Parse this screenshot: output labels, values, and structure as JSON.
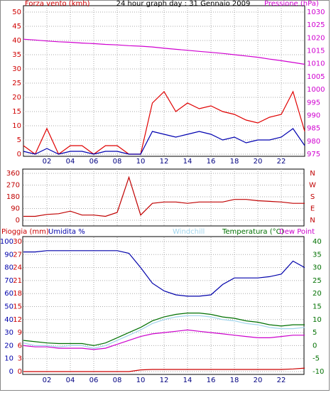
{
  "chart_data": [
    {
      "type": "line",
      "title": "24 hour graph day : 31 Gennaio 2009",
      "ylabel": "Forza vento (kmh)",
      "y2label": "Pressione (hPa)",
      "x": [
        0,
        1,
        2,
        3,
        4,
        5,
        6,
        7,
        8,
        9,
        10,
        11,
        12,
        13,
        14,
        15,
        16,
        17,
        18,
        19,
        20,
        21,
        22,
        23,
        24
      ],
      "xlim": [
        0,
        24
      ],
      "xticks": [
        {
          "value": 2,
          "label": "02"
        },
        {
          "value": 4,
          "label": "04"
        },
        {
          "value": 6,
          "label": "06"
        },
        {
          "value": 8,
          "label": "08"
        },
        {
          "value": 10,
          "label": "10"
        },
        {
          "value": 12,
          "label": "12"
        },
        {
          "value": 14,
          "label": "14"
        },
        {
          "value": 16,
          "label": "16"
        },
        {
          "value": 18,
          "label": "18"
        },
        {
          "value": 20,
          "label": "20"
        },
        {
          "value": 22,
          "label": "22"
        }
      ],
      "ylim": [
        0,
        50
      ],
      "yticks": [
        0,
        5,
        10,
        15,
        20,
        25,
        30,
        35,
        40,
        45,
        50
      ],
      "y2lim": [
        975,
        1030
      ],
      "y2ticks": [
        975,
        980,
        985,
        990,
        995,
        1000,
        1005,
        1010,
        1015,
        1020,
        1025,
        1030
      ],
      "grid": true,
      "series": [
        {
          "color": "#e00000",
          "values": [
            3,
            0,
            9,
            0,
            3,
            3,
            0,
            3,
            3,
            0,
            0,
            18,
            22,
            15,
            18,
            16,
            17,
            15,
            14,
            12,
            11,
            13,
            14,
            22,
            8
          ]
        },
        {
          "color": "#0000b0",
          "values": [
            1,
            0,
            2,
            0,
            1,
            1,
            0,
            1,
            1,
            0,
            0,
            8,
            7,
            6,
            7,
            8,
            7,
            5,
            6,
            4,
            5,
            5,
            6,
            9,
            3
          ]
        },
        {
          "color": "#d000d0",
          "axis": "y2",
          "values": [
            1019.5,
            1019.2,
            1018.8,
            1018.5,
            1018.3,
            1018,
            1017.8,
            1017.5,
            1017.3,
            1017,
            1016.8,
            1016.5,
            1016,
            1015.6,
            1015.2,
            1014.8,
            1014.4,
            1014,
            1013.5,
            1013,
            1012.5,
            1011.8,
            1011.2,
            1010.5,
            1009.8
          ]
        }
      ]
    },
    {
      "type": "line",
      "x": [
        0,
        1,
        2,
        3,
        4,
        5,
        6,
        7,
        8,
        9,
        10,
        11,
        12,
        13,
        14,
        15,
        16,
        17,
        18,
        19,
        20,
        21,
        22,
        23,
        24
      ],
      "xlim": [
        0,
        24
      ],
      "ylim": [
        0,
        360
      ],
      "yticks": [
        0,
        90,
        180,
        270,
        360
      ],
      "y2lim": [
        0,
        360
      ],
      "y2ticks": [
        {
          "value": 0,
          "label": "N"
        },
        {
          "value": 90,
          "label": "E"
        },
        {
          "value": 180,
          "label": "S"
        },
        {
          "value": 270,
          "label": "W"
        },
        {
          "value": 360,
          "label": "N"
        }
      ],
      "grid": true,
      "series": [
        {
          "color": "#c00000",
          "values": [
            30,
            30,
            45,
            50,
            70,
            40,
            40,
            30,
            60,
            330,
            40,
            130,
            140,
            140,
            130,
            140,
            140,
            140,
            160,
            160,
            150,
            145,
            140,
            130,
            130
          ]
        }
      ]
    },
    {
      "type": "line",
      "ylabel": "Umidita %",
      "y3label": "Pioggia (mm)",
      "x": [
        0,
        1,
        2,
        3,
        4,
        5,
        6,
        7,
        8,
        9,
        10,
        11,
        12,
        13,
        14,
        15,
        16,
        17,
        18,
        19,
        20,
        21,
        22,
        23,
        24
      ],
      "xlim": [
        0,
        24
      ],
      "xticks": [
        {
          "value": 2,
          "label": "02"
        },
        {
          "value": 4,
          "label": "04"
        },
        {
          "value": 6,
          "label": "06"
        },
        {
          "value": 8,
          "label": "08"
        },
        {
          "value": 10,
          "label": "10"
        },
        {
          "value": 12,
          "label": "12"
        },
        {
          "value": 14,
          "label": "14"
        },
        {
          "value": 16,
          "label": "16"
        },
        {
          "value": 18,
          "label": "18"
        },
        {
          "value": 20,
          "label": "20"
        },
        {
          "value": 22,
          "label": "22"
        }
      ],
      "ylim": [
        0,
        100
      ],
      "yticks": [
        0,
        10,
        20,
        30,
        40,
        50,
        60,
        70,
        80,
        90,
        100
      ],
      "y3lim": [
        0,
        30
      ],
      "y3ticks": [
        0,
        3,
        6,
        9,
        12,
        15,
        18,
        21,
        24,
        27,
        30
      ],
      "y2lim": [
        -10,
        40
      ],
      "y2ticks": [
        -10,
        -5,
        0,
        5,
        10,
        15,
        20,
        25,
        30,
        35,
        40
      ],
      "grid": true,
      "series": [
        {
          "color": "#0000aa",
          "values": [
            92,
            92,
            93,
            93,
            93,
            93,
            93,
            93,
            93,
            91,
            80,
            68,
            62,
            59,
            58,
            58,
            59,
            67,
            72,
            72,
            72,
            73,
            75,
            85,
            80
          ]
        },
        {
          "name": "Windchill",
          "color": "#a0d4ec",
          "axis": "y2",
          "values": [
            1,
            0,
            0,
            -0.5,
            0,
            0,
            -1,
            0,
            2,
            4,
            6,
            8.5,
            10,
            11,
            11.5,
            11.5,
            11,
            10,
            9.5,
            8.5,
            8,
            7,
            6.5,
            6.5,
            7
          ]
        },
        {
          "name": "Temperatura (°C)",
          "color": "#007000",
          "axis": "y2",
          "values": [
            2,
            1.5,
            1,
            0.8,
            0.8,
            0.8,
            0,
            1,
            3,
            5,
            7,
            9.5,
            11,
            12,
            12.5,
            12.5,
            12,
            11,
            10.5,
            9.5,
            9,
            8,
            7.5,
            8,
            8
          ]
        },
        {
          "name": "Dew Point",
          "color": "#cc00cc",
          "axis": "y2",
          "values": [
            0,
            -0.5,
            -0.5,
            -1,
            -1,
            -1,
            -1.5,
            -1,
            0.5,
            2,
            3.5,
            4.5,
            5,
            5.5,
            6,
            5.5,
            5,
            4.5,
            4,
            3.5,
            3,
            3,
            3.5,
            4,
            4
          ]
        },
        {
          "color": "#cc0000",
          "axis": "y3",
          "values": [
            0,
            0,
            0,
            0,
            0,
            0,
            0,
            0,
            0,
            0,
            0.4,
            0.5,
            0.5,
            0.5,
            0.5,
            0.5,
            0.5,
            0.5,
            0.5,
            0.5,
            0.5,
            0.5,
            0.5,
            0.6,
            0.8
          ]
        }
      ]
    }
  ]
}
